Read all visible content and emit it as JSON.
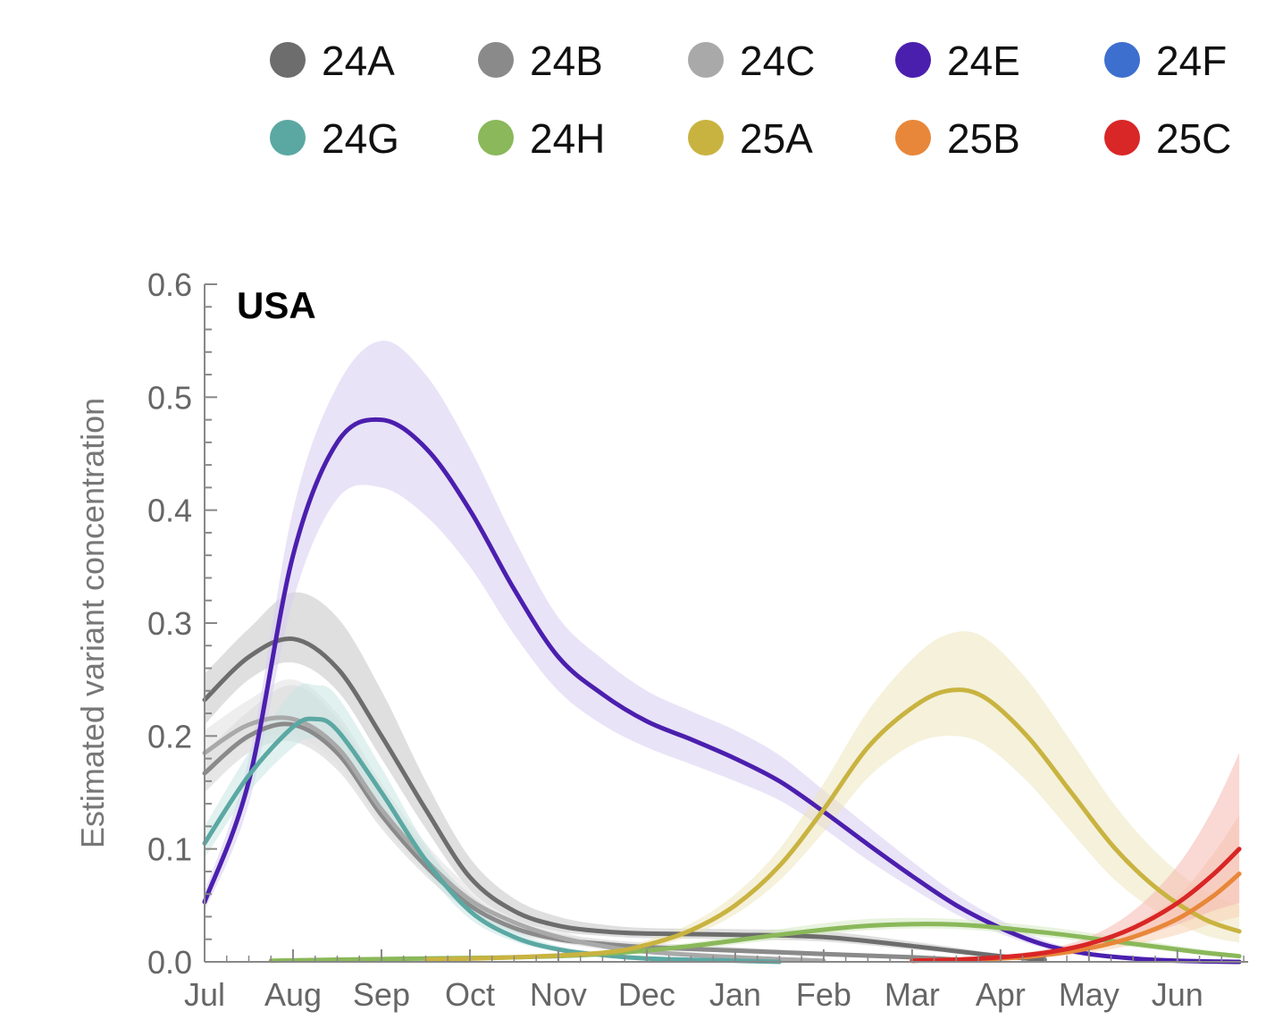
{
  "chart_data": {
    "type": "line",
    "panel_label": "USA",
    "ylabel": "Estimated variant concentration",
    "xlabel": "",
    "ylim": [
      0,
      0.6
    ],
    "y_ticks": [
      "0.0",
      "0.1",
      "0.2",
      "0.3",
      "0.4",
      "0.5",
      "0.6"
    ],
    "x_ticks": [
      "Jul",
      "Aug",
      "Sep",
      "Oct",
      "Nov",
      "Dec",
      "Jan",
      "Feb",
      "Mar",
      "Apr",
      "May",
      "Jun"
    ],
    "x_tick_positions": [
      0,
      1,
      2,
      3,
      4,
      5,
      6,
      7,
      8,
      9,
      10,
      11
    ],
    "xlim": [
      0,
      11.8
    ],
    "grid": false,
    "legend_position": "top",
    "legend": [
      "24A",
      "24B",
      "24C",
      "24E",
      "24F",
      "24G",
      "24H",
      "25A",
      "25B",
      "25C"
    ],
    "series": [
      {
        "name": "24A",
        "color": "#6d6d6d",
        "band_color": "#c4c4c4",
        "x": [
          0,
          0.5,
          1,
          1.5,
          2,
          2.5,
          3,
          3.5,
          4,
          4.5,
          5,
          6,
          7,
          8,
          9,
          9.5
        ],
        "y": [
          0.232,
          0.27,
          0.286,
          0.26,
          0.2,
          0.135,
          0.075,
          0.045,
          0.032,
          0.027,
          0.025,
          0.024,
          0.022,
          0.014,
          0.005,
          0.002
        ],
        "lower": [
          0.21,
          0.25,
          0.265,
          0.24,
          0.18,
          0.118,
          0.064,
          0.038,
          0.027,
          0.023,
          0.021,
          0.02,
          0.018,
          0.011,
          0.004,
          0.001
        ],
        "upper": [
          0.255,
          0.295,
          0.327,
          0.305,
          0.24,
          0.16,
          0.092,
          0.056,
          0.04,
          0.033,
          0.03,
          0.029,
          0.027,
          0.018,
          0.007,
          0.003
        ]
      },
      {
        "name": "24B",
        "color": "#8a8a8a",
        "band_color": "#d2d2d2",
        "x": [
          0,
          0.5,
          1,
          1.5,
          2,
          2.5,
          3,
          3.5,
          4,
          4.5,
          5,
          6,
          7,
          8,
          8.5
        ],
        "y": [
          0.167,
          0.2,
          0.21,
          0.185,
          0.13,
          0.085,
          0.05,
          0.03,
          0.02,
          0.016,
          0.013,
          0.01,
          0.007,
          0.004,
          0.002
        ],
        "lower": [
          0.15,
          0.185,
          0.195,
          0.17,
          0.118,
          0.076,
          0.044,
          0.026,
          0.017,
          0.013,
          0.011,
          0.008,
          0.005,
          0.003,
          0.001
        ],
        "upper": [
          0.185,
          0.222,
          0.245,
          0.215,
          0.152,
          0.1,
          0.06,
          0.037,
          0.025,
          0.02,
          0.017,
          0.013,
          0.009,
          0.006,
          0.003
        ]
      },
      {
        "name": "24C",
        "color": "#a9a9a9",
        "band_color": "#e0e0e0",
        "x": [
          0,
          0.5,
          1,
          1.5,
          2,
          2.5,
          3,
          3.5,
          4,
          4.5,
          5,
          6,
          7
        ],
        "y": [
          0.185,
          0.21,
          0.215,
          0.19,
          0.135,
          0.09,
          0.055,
          0.035,
          0.022,
          0.014,
          0.009,
          0.004,
          0.001
        ],
        "lower": [
          0.168,
          0.195,
          0.2,
          0.175,
          0.122,
          0.08,
          0.048,
          0.03,
          0.018,
          0.011,
          0.007,
          0.003,
          0.0005
        ],
        "upper": [
          0.205,
          0.232,
          0.25,
          0.22,
          0.158,
          0.105,
          0.066,
          0.043,
          0.028,
          0.018,
          0.012,
          0.006,
          0.002
        ]
      },
      {
        "name": "24E",
        "color": "#4b1fae",
        "band_color": "#d7ccf0",
        "x": [
          0,
          0.5,
          1,
          1.5,
          2,
          2.5,
          3,
          3.5,
          4,
          4.5,
          5,
          5.5,
          6,
          6.5,
          7,
          7.5,
          8,
          8.5,
          9,
          9.5,
          10,
          10.5,
          11,
          11.7
        ],
        "y": [
          0.053,
          0.16,
          0.36,
          0.46,
          0.48,
          0.455,
          0.4,
          0.33,
          0.27,
          0.237,
          0.213,
          0.197,
          0.18,
          0.16,
          0.133,
          0.104,
          0.076,
          0.05,
          0.03,
          0.015,
          0.007,
          0.003,
          0.001,
          0.0
        ],
        "lower": [
          0.045,
          0.14,
          0.32,
          0.41,
          0.42,
          0.395,
          0.35,
          0.29,
          0.24,
          0.21,
          0.19,
          0.175,
          0.16,
          0.143,
          0.118,
          0.09,
          0.065,
          0.042,
          0.025,
          0.012,
          0.005,
          0.002,
          0.0005,
          0.0
        ],
        "upper": [
          0.062,
          0.18,
          0.4,
          0.51,
          0.55,
          0.52,
          0.455,
          0.375,
          0.305,
          0.268,
          0.24,
          0.222,
          0.205,
          0.183,
          0.152,
          0.12,
          0.089,
          0.06,
          0.037,
          0.019,
          0.009,
          0.004,
          0.0015,
          0.0
        ]
      },
      {
        "name": "24F",
        "color": "#3d6fcf",
        "band_color": "#c6d5f3",
        "x": [],
        "y": [],
        "lower": [],
        "upper": []
      },
      {
        "name": "24G",
        "color": "#5ba8a3",
        "band_color": "#c8e6e3",
        "x": [
          0,
          0.5,
          1,
          1.25,
          1.5,
          2,
          2.5,
          3,
          3.5,
          4,
          4.5,
          5,
          6,
          6.5
        ],
        "y": [
          0.105,
          0.165,
          0.208,
          0.215,
          0.205,
          0.15,
          0.09,
          0.045,
          0.022,
          0.011,
          0.006,
          0.003,
          0.001,
          0.0
        ],
        "lower": [
          0.092,
          0.15,
          0.19,
          0.198,
          0.188,
          0.135,
          0.08,
          0.038,
          0.018,
          0.009,
          0.004,
          0.002,
          0.0005,
          0.0
        ],
        "upper": [
          0.12,
          0.185,
          0.24,
          0.245,
          0.235,
          0.172,
          0.104,
          0.055,
          0.028,
          0.014,
          0.008,
          0.004,
          0.0015,
          0.0
        ]
      },
      {
        "name": "24H",
        "color": "#8ab85a",
        "band_color": "#d6e9c2",
        "x": [
          0.75,
          1.5,
          2.5,
          3.5,
          4.5,
          5.5,
          6.5,
          7.5,
          8.5,
          9.5,
          10.5,
          11.2,
          11.7
        ],
        "y": [
          0.001,
          0.002,
          0.003,
          0.004,
          0.007,
          0.014,
          0.024,
          0.032,
          0.033,
          0.026,
          0.016,
          0.009,
          0.005
        ],
        "lower": [
          0.0005,
          0.0015,
          0.002,
          0.003,
          0.005,
          0.011,
          0.02,
          0.028,
          0.029,
          0.022,
          0.013,
          0.007,
          0.004
        ],
        "upper": [
          0.0015,
          0.003,
          0.004,
          0.005,
          0.009,
          0.017,
          0.029,
          0.038,
          0.038,
          0.031,
          0.02,
          0.012,
          0.007
        ]
      },
      {
        "name": "25A",
        "color": "#c9b340",
        "band_color": "#ece6bd",
        "x": [
          2.5,
          3.5,
          4.5,
          5,
          5.5,
          6,
          6.5,
          7,
          7.5,
          8,
          8.4,
          8.8,
          9.3,
          9.8,
          10.3,
          10.8,
          11.3,
          11.7
        ],
        "y": [
          0.002,
          0.004,
          0.008,
          0.015,
          0.028,
          0.05,
          0.085,
          0.135,
          0.19,
          0.225,
          0.24,
          0.235,
          0.2,
          0.15,
          0.1,
          0.063,
          0.038,
          0.027
        ],
        "lower": [
          0.0015,
          0.003,
          0.006,
          0.012,
          0.023,
          0.042,
          0.072,
          0.115,
          0.163,
          0.192,
          0.2,
          0.193,
          0.16,
          0.115,
          0.072,
          0.043,
          0.024,
          0.017
        ],
        "upper": [
          0.003,
          0.005,
          0.01,
          0.019,
          0.034,
          0.06,
          0.1,
          0.158,
          0.222,
          0.268,
          0.29,
          0.288,
          0.25,
          0.195,
          0.138,
          0.094,
          0.063,
          0.05
        ]
      },
      {
        "name": "25B",
        "color": "#e8873a",
        "band_color": "#f7d2b3",
        "x": [
          8,
          9,
          9.5,
          10,
          10.5,
          11,
          11.4,
          11.7
        ],
        "y": [
          0.001,
          0.003,
          0.006,
          0.012,
          0.022,
          0.038,
          0.058,
          0.078
        ],
        "lower": [
          0.0005,
          0.002,
          0.004,
          0.008,
          0.015,
          0.024,
          0.034,
          0.04
        ],
        "upper": [
          0.0015,
          0.005,
          0.009,
          0.018,
          0.033,
          0.058,
          0.095,
          0.13
        ]
      },
      {
        "name": "25C",
        "color": "#d92626",
        "band_color": "#f5b8b0",
        "x": [
          8,
          8.5,
          9,
          9.5,
          10,
          10.5,
          11,
          11.4,
          11.7
        ],
        "y": [
          0.001,
          0.002,
          0.004,
          0.008,
          0.016,
          0.03,
          0.052,
          0.077,
          0.1
        ],
        "lower": [
          0.0005,
          0.0015,
          0.003,
          0.006,
          0.011,
          0.02,
          0.033,
          0.045,
          0.052
        ],
        "upper": [
          0.0015,
          0.003,
          0.006,
          0.011,
          0.022,
          0.045,
          0.085,
          0.135,
          0.185
        ]
      }
    ]
  }
}
